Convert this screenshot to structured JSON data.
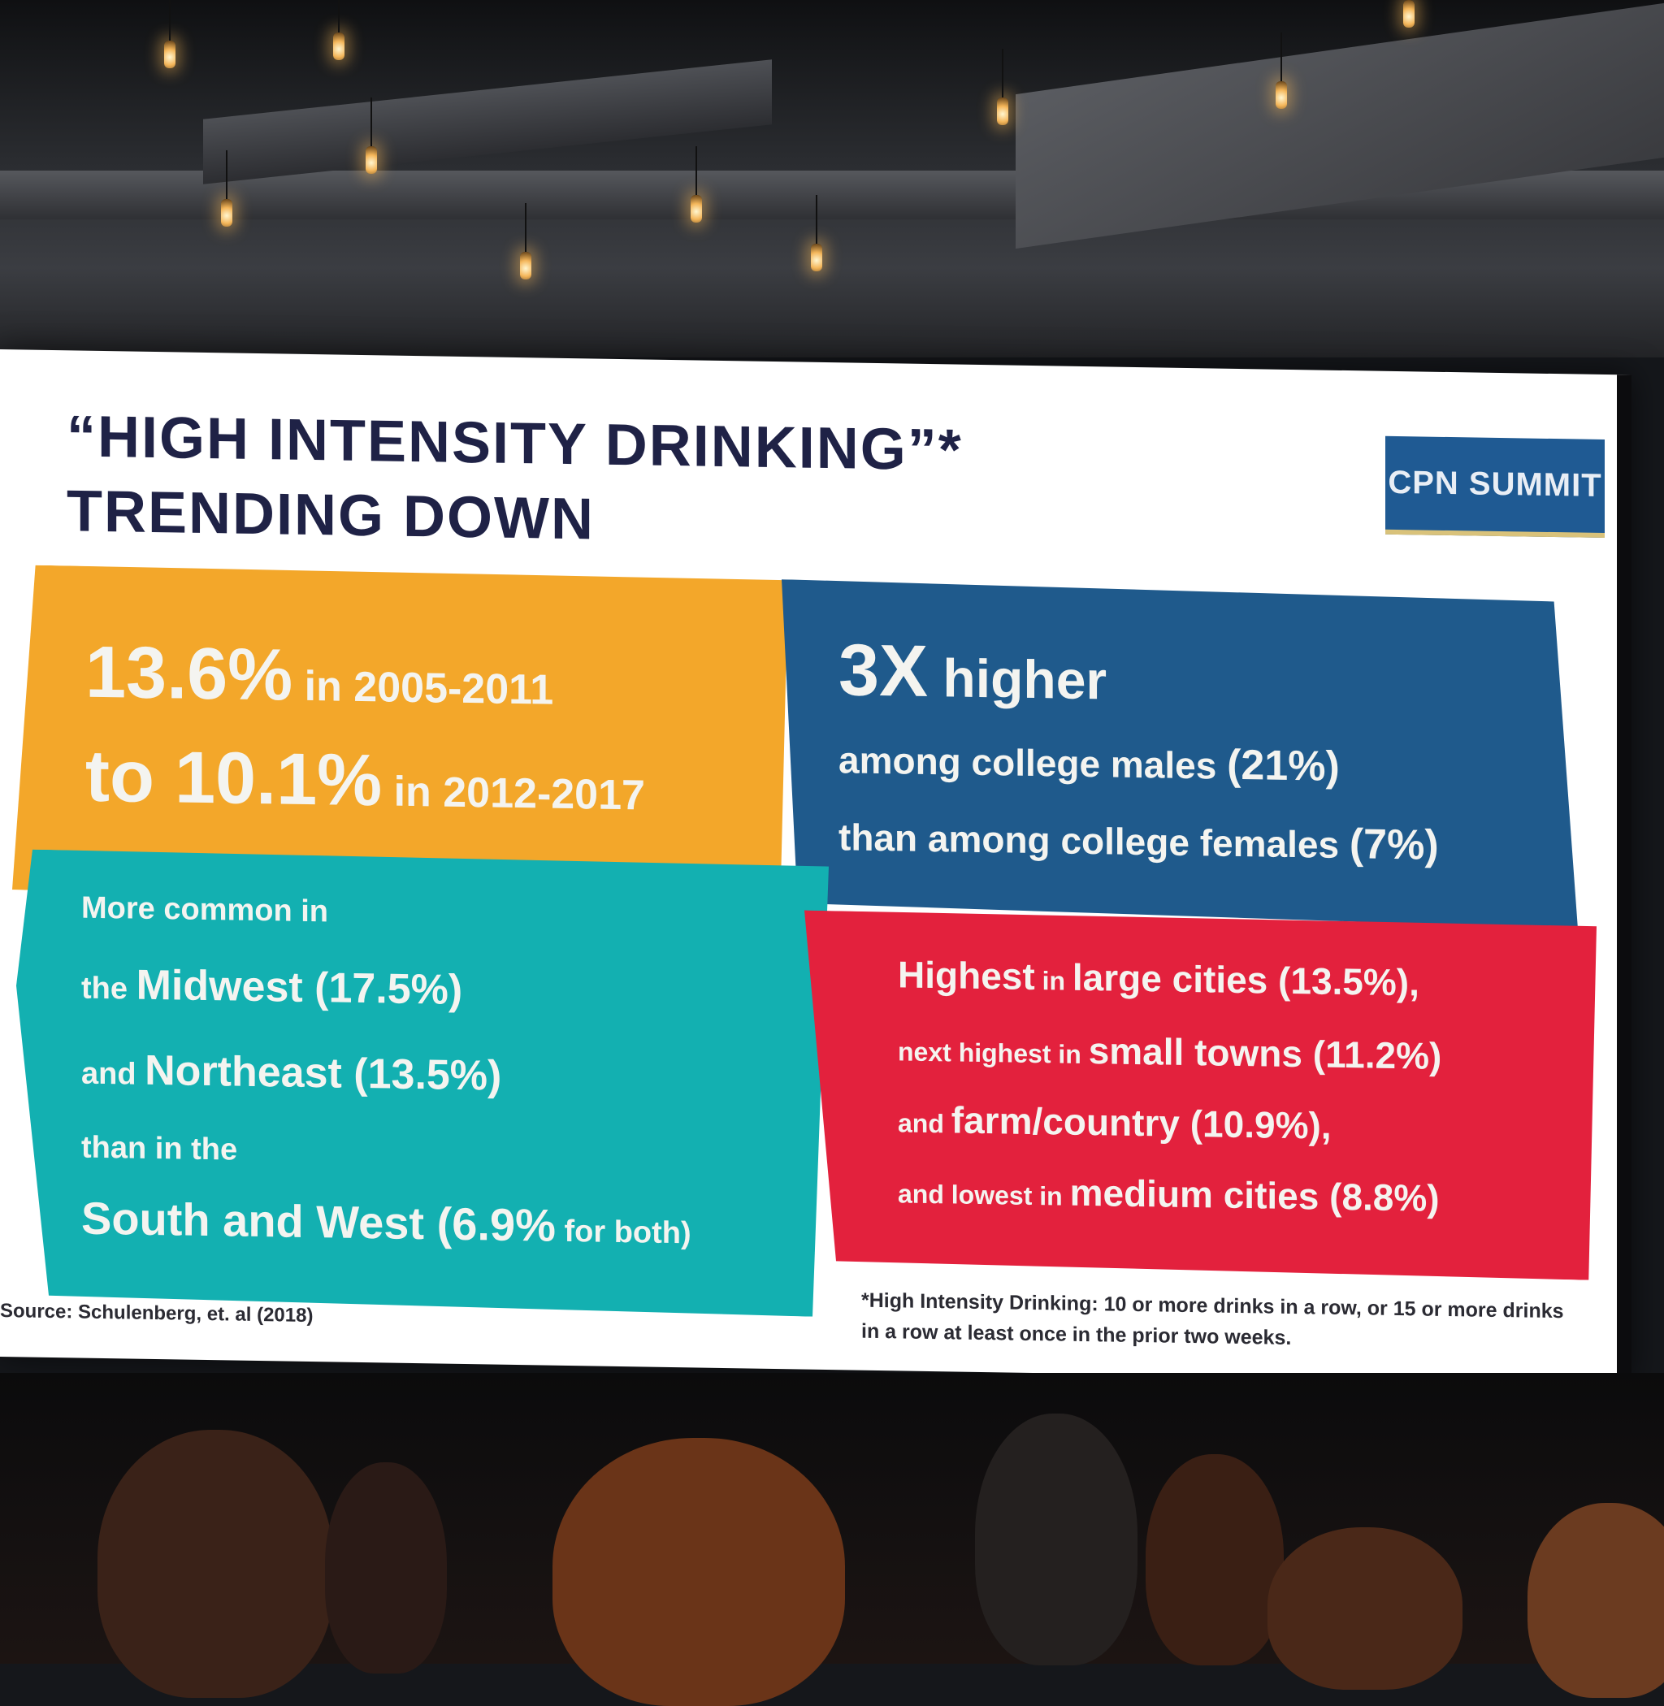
{
  "slide": {
    "title_line1": "“HIGH INTENSITY DRINKING”*",
    "title_line2": "TRENDING DOWN",
    "logo_text": "CPN SUMMIT",
    "panels": {
      "orange": {
        "line1_big": "13.6%",
        "line1_small": " in 2005-2011",
        "line2_big_prefix": "to ",
        "line2_big": "10.1%",
        "line2_small": " in 2012-2017"
      },
      "blue": {
        "headline_big": "3X",
        "headline_rest": " higher",
        "line2_text": "among college males ",
        "line2_value": "(21%)",
        "line3_text": "than among college females ",
        "line3_value": "(7%)"
      },
      "teal": {
        "line1": "More common in",
        "line2_prefix": "the ",
        "line2_bold": "Midwest (17.5%)",
        "line3_prefix": "and ",
        "line3_bold": "Northeast (13.5%)",
        "line4": "than in the",
        "line5_bold": "South and West (6.9%",
        "line5_small": " for both)"
      },
      "red": {
        "line1_a": "Highest",
        "line1_b": " in ",
        "line1_c": "large cities (13.5%),",
        "line2_a": "next highest in ",
        "line2_b": "small towns (11.2%)",
        "line3_a": "and ",
        "line3_b": "farm/country (10.9%),",
        "line4_a": "and lowest in ",
        "line4_b": "medium cities (8.8%)"
      }
    },
    "footnote_line1": "*High Intensity Drinking: 10 or more drinks in a row, or 15 or more drinks",
    "footnote_line2": "in a row at least once in the prior two weeks.",
    "source": "Source: Schulenberg, et. al (2018)"
  },
  "colors": {
    "orange": "#f3a72a",
    "blue": "#1f5a8c",
    "teal": "#13b0b1",
    "red": "#e3213d",
    "title": "#1f2246"
  }
}
